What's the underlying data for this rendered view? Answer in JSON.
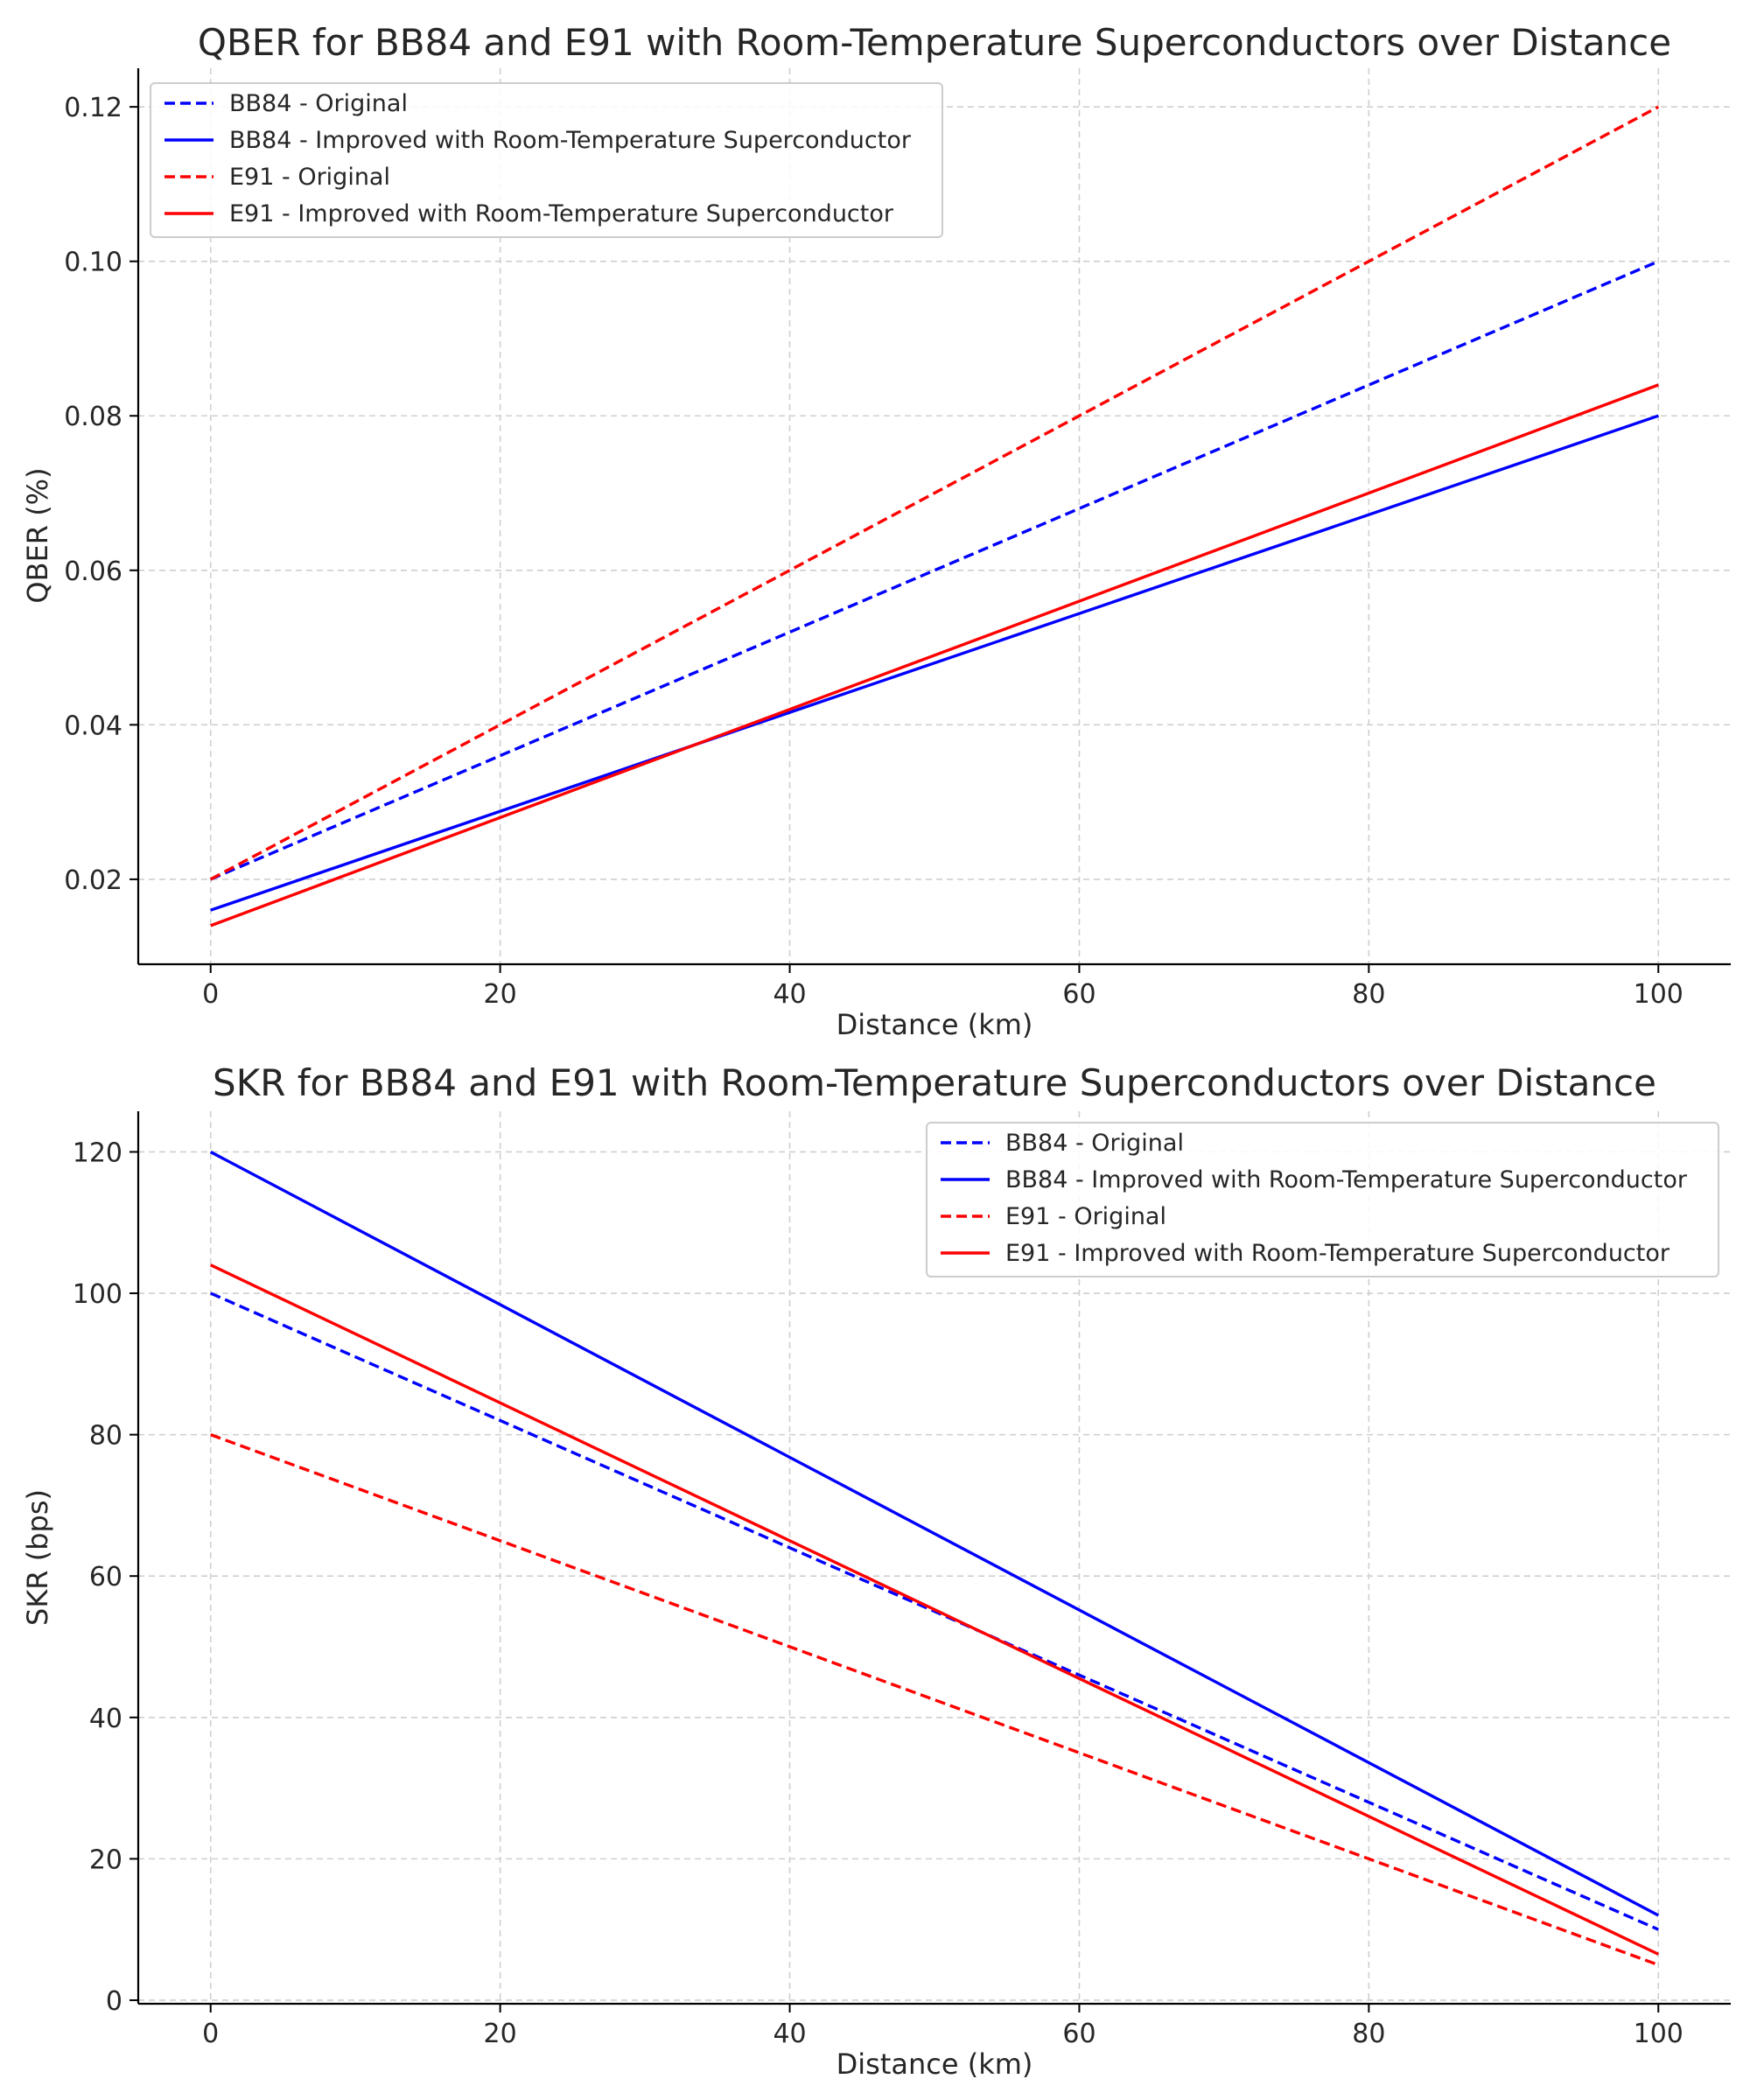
{
  "chart_data": [
    {
      "type": "line",
      "title": "QBER for BB84 and E91 with Room-Temperature Superconductors over Distance",
      "xlabel": "Distance (km)",
      "ylabel": "QBER (%)",
      "xlim": [
        -5,
        105
      ],
      "ylim": [
        0.009,
        0.125
      ],
      "xticks": [
        0,
        20,
        40,
        60,
        80,
        100
      ],
      "yticks": [
        0.02,
        0.04,
        0.06,
        0.08,
        0.1,
        0.12
      ],
      "xtick_labels": [
        "0",
        "20",
        "40",
        "60",
        "80",
        "100"
      ],
      "ytick_labels": [
        "0.02",
        "0.04",
        "0.06",
        "0.08",
        "0.10",
        "0.12"
      ],
      "grid": true,
      "legend_position": "upper-left",
      "series": [
        {
          "name": "BB84 - Original",
          "color": "#0000ff",
          "style": "dashed",
          "x": [
            0,
            100
          ],
          "y": [
            0.02,
            0.1
          ]
        },
        {
          "name": "BB84 - Improved with Room-Temperature Superconductor",
          "color": "#0000ff",
          "style": "solid",
          "x": [
            0,
            100
          ],
          "y": [
            0.016,
            0.08
          ]
        },
        {
          "name": "E91 - Original",
          "color": "#ff0000",
          "style": "dashed",
          "x": [
            0,
            100
          ],
          "y": [
            0.02,
            0.12
          ]
        },
        {
          "name": "E91 - Improved with Room-Temperature Superconductor",
          "color": "#ff0000",
          "style": "solid",
          "x": [
            0,
            100
          ],
          "y": [
            0.014,
            0.084
          ]
        }
      ]
    },
    {
      "type": "line",
      "title": "SKR for BB84 and E91 with Room-Temperature Superconductors over Distance",
      "xlabel": "Distance (km)",
      "ylabel": "SKR (bps)",
      "xlim": [
        -5,
        105
      ],
      "ylim": [
        -0.5,
        125.75
      ],
      "xticks": [
        0,
        20,
        40,
        60,
        80,
        100
      ],
      "yticks": [
        0,
        20,
        40,
        60,
        80,
        100,
        120
      ],
      "xtick_labels": [
        "0",
        "20",
        "40",
        "60",
        "80",
        "100"
      ],
      "ytick_labels": [
        "0",
        "20",
        "40",
        "60",
        "80",
        "100",
        "120"
      ],
      "grid": true,
      "legend_position": "upper-right",
      "series": [
        {
          "name": "BB84 - Original",
          "color": "#0000ff",
          "style": "dashed",
          "x": [
            0,
            100
          ],
          "y": [
            100,
            10
          ]
        },
        {
          "name": "BB84 - Improved with Room-Temperature Superconductor",
          "color": "#0000ff",
          "style": "solid",
          "x": [
            0,
            100
          ],
          "y": [
            120,
            12
          ]
        },
        {
          "name": "E91 - Original",
          "color": "#ff0000",
          "style": "dashed",
          "x": [
            0,
            100
          ],
          "y": [
            80,
            5
          ]
        },
        {
          "name": "E91 - Improved with Room-Temperature Superconductor",
          "color": "#ff0000",
          "style": "solid",
          "x": [
            0,
            100
          ],
          "y": [
            104,
            6.5
          ]
        }
      ]
    }
  ]
}
